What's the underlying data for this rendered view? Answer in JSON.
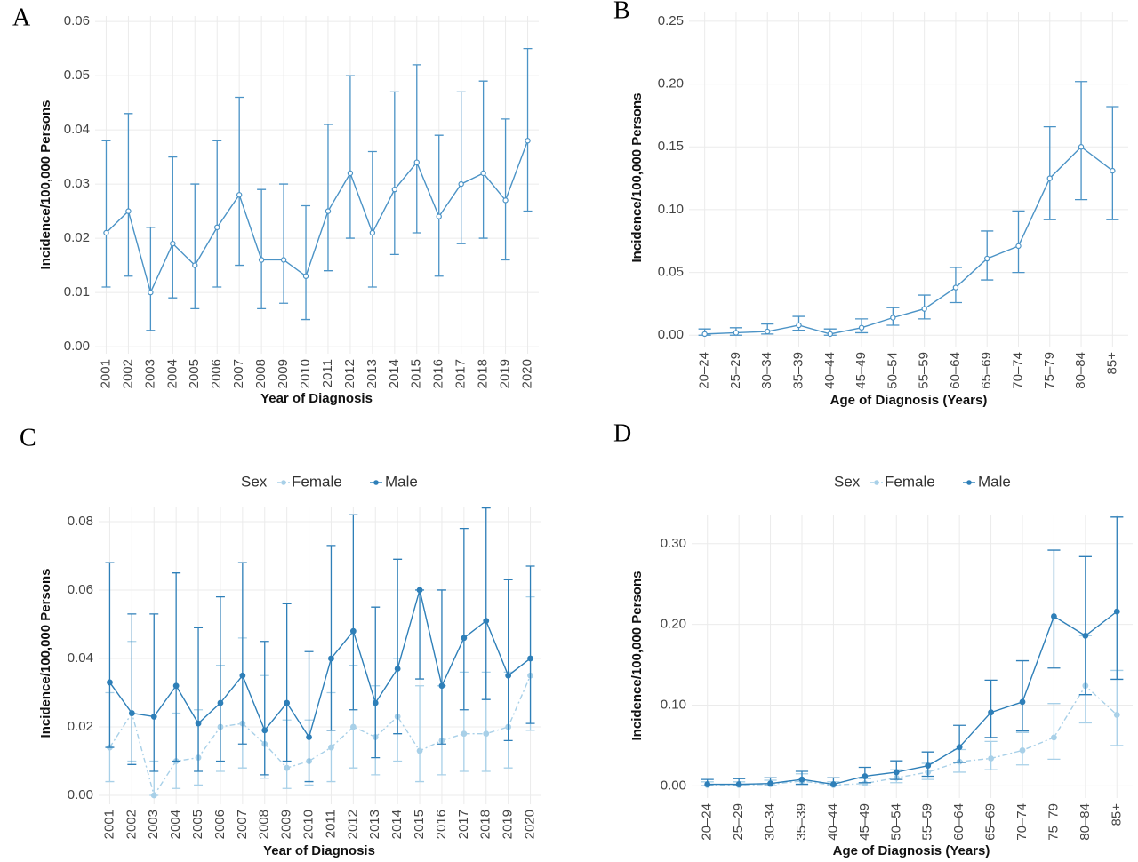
{
  "chart_data": [
    {
      "type": "line",
      "label": "A",
      "ylabel": "Incidence/100,000 Persons",
      "xlabel": "Year of Diagnosis",
      "categories": [
        "2001",
        "2002",
        "2003",
        "2004",
        "2005",
        "2006",
        "2007",
        "2008",
        "2009",
        "2010",
        "2011",
        "2012",
        "2013",
        "2014",
        "2015",
        "2016",
        "2017",
        "2018",
        "2019",
        "2020"
      ],
      "ylim": [
        -0.0013,
        0.061
      ],
      "yticks": [
        {
          "value": 0,
          "label": "0.00"
        },
        0.01,
        0.02,
        0.03,
        0.04,
        0.05,
        0.06
      ],
      "grid": true,
      "series": [
        {
          "color": "#4b93c6",
          "hollow": true,
          "values": [
            0.021,
            0.025,
            0.01,
            0.019,
            0.015,
            0.022,
            0.028,
            0.016,
            0.016,
            0.013,
            0.025,
            0.032,
            0.021,
            0.029,
            0.034,
            0.024,
            0.03,
            0.032,
            0.027,
            0.038
          ],
          "lower": [
            0.011,
            0.013,
            0.003,
            0.009,
            0.007,
            0.011,
            0.015,
            0.007,
            0.008,
            0.005,
            0.014,
            0.02,
            0.011,
            0.017,
            0.021,
            0.013,
            0.019,
            0.02,
            0.016,
            0.025
          ],
          "upper": [
            0.038,
            0.043,
            0.022,
            0.035,
            0.03,
            0.038,
            0.046,
            0.029,
            0.03,
            0.026,
            0.041,
            0.05,
            0.036,
            0.047,
            0.052,
            0.039,
            0.047,
            0.049,
            0.042,
            0.055
          ]
        }
      ]
    },
    {
      "type": "line",
      "label": "B",
      "ylabel": "Incidence/100,000 Persons",
      "xlabel": "Age of Diagnosis (Years)",
      "categories": [
        "20–24",
        "25–29",
        "30–34",
        "35–39",
        "40–44",
        "45–49",
        "50–54",
        "55–59",
        "60–64",
        "65–69",
        "70–74",
        "75–79",
        "80–84",
        "85+"
      ],
      "ylim": [
        -0.009,
        0.257
      ],
      "yticks": [
        {
          "value": 0,
          "label": "0.00"
        },
        0.05,
        {
          "value": 0.1,
          "label": "0.10"
        },
        0.15,
        {
          "value": 0.2,
          "label": "0.20"
        },
        0.25
      ],
      "grid": true,
      "series": [
        {
          "color": "#4b93c6",
          "hollow": true,
          "values": [
            0.001,
            0.002,
            0.003,
            0.008,
            0.001,
            0.006,
            0.014,
            0.021,
            0.038,
            0.061,
            0.071,
            0.125,
            0.15,
            0.131
          ],
          "lower": [
            0.0,
            0.0,
            0.001,
            0.004,
            0.0,
            0.002,
            0.008,
            0.013,
            0.026,
            0.044,
            0.05,
            0.092,
            0.108,
            0.092
          ],
          "upper": [
            0.005,
            0.006,
            0.009,
            0.015,
            0.005,
            0.013,
            0.022,
            0.032,
            0.054,
            0.083,
            0.099,
            0.166,
            0.202,
            0.182
          ]
        }
      ]
    },
    {
      "type": "line",
      "label": "C",
      "ylabel": "Incidence/100,000 Persons",
      "xlabel": "Year of Diagnosis",
      "legend_title": "Sex",
      "categories": [
        "2001",
        "2002",
        "2003",
        "2004",
        "2005",
        "2006",
        "2007",
        "2008",
        "2009",
        "2010",
        "2011",
        "2012",
        "2013",
        "2014",
        "2015",
        "2016",
        "2017",
        "2018",
        "2019",
        "2020"
      ],
      "ylim": [
        -0.0026,
        0.0844
      ],
      "yticks": [
        {
          "value": 0,
          "label": "0.00"
        },
        0.02,
        0.04,
        0.06,
        0.08
      ],
      "grid": true,
      "series": [
        {
          "name": "Female",
          "color": "#a8d0e8",
          "dashed": true,
          "values": [
            0.014,
            0.024,
            0.0,
            0.01,
            0.011,
            0.02,
            0.021,
            0.015,
            0.008,
            0.01,
            0.014,
            0.02,
            0.017,
            0.023,
            0.013,
            0.016,
            0.018,
            0.018,
            0.02,
            0.035
          ],
          "lower": [
            0.004,
            0.01,
            0.0,
            0.002,
            0.003,
            0.007,
            0.008,
            0.005,
            0.002,
            0.003,
            0.004,
            0.008,
            0.006,
            0.01,
            0.004,
            0.006,
            0.007,
            0.007,
            0.008,
            0.019
          ],
          "upper": [
            0.03,
            0.045,
            0.01,
            0.024,
            0.025,
            0.038,
            0.046,
            0.035,
            0.022,
            0.022,
            0.03,
            0.038,
            0.032,
            0.04,
            0.032,
            0.032,
            0.036,
            0.036,
            0.036,
            0.058
          ]
        },
        {
          "name": "Male",
          "color": "#2e7fb8",
          "values": [
            0.033,
            0.024,
            0.023,
            0.032,
            0.021,
            0.027,
            0.035,
            0.019,
            0.027,
            0.017,
            0.04,
            0.048,
            0.027,
            0.037,
            0.06,
            0.032,
            0.046,
            0.051,
            0.035,
            0.04
          ],
          "lower": [
            0.014,
            0.009,
            0.007,
            0.01,
            0.007,
            0.01,
            0.015,
            0.006,
            0.01,
            0.004,
            0.019,
            0.025,
            0.011,
            0.018,
            0.034,
            0.015,
            0.025,
            0.028,
            0.016,
            0.021
          ],
          "upper": [
            0.068,
            0.053,
            0.053,
            0.065,
            0.049,
            0.058,
            0.068,
            0.045,
            0.056,
            0.042,
            0.073,
            0.082,
            0.055,
            0.069,
            0.06,
            0.06,
            0.078,
            0.084,
            0.063,
            0.067
          ]
        }
      ]
    },
    {
      "type": "line",
      "label": "D",
      "ylabel": "Incidence/100,000 Persons",
      "xlabel": "Age of Diagnosis (Years)",
      "legend_title": "Sex",
      "categories": [
        "20–24",
        "25–29",
        "30–34",
        "35–39",
        "40–44",
        "45–49",
        "50–54",
        "55–59",
        "60–64",
        "65–69",
        "70–74",
        "75–79",
        "80–84",
        "85+"
      ],
      "ylim": [
        -0.015,
        0.335
      ],
      "yticks": [
        {
          "value": 0,
          "label": "0.00"
        },
        {
          "value": 0.1,
          "label": "0.10"
        },
        {
          "value": 0.2,
          "label": "0.20"
        },
        {
          "value": 0.3,
          "label": "0.30"
        }
      ],
      "grid": true,
      "series": [
        {
          "name": "Female",
          "color": "#a8d0e8",
          "dashed": true,
          "values": [
            0.001,
            0.001,
            0.002,
            0.006,
            0.001,
            0.003,
            0.01,
            0.017,
            0.03,
            0.034,
            0.044,
            0.06,
            0.124,
            0.088
          ],
          "lower": [
            0.0,
            0.0,
            0.0,
            0.002,
            0.0,
            0.0,
            0.004,
            0.008,
            0.017,
            0.02,
            0.026,
            0.033,
            0.078,
            0.05
          ],
          "upper": [
            0.005,
            0.005,
            0.007,
            0.015,
            0.005,
            0.009,
            0.02,
            0.028,
            0.045,
            0.055,
            0.066,
            0.102,
            0.186,
            0.143
          ]
        },
        {
          "name": "Male",
          "color": "#2e7fb8",
          "values": [
            0.002,
            0.002,
            0.003,
            0.008,
            0.002,
            0.012,
            0.017,
            0.025,
            0.048,
            0.091,
            0.104,
            0.21,
            0.186,
            0.216
          ],
          "lower": [
            0.0,
            0.0,
            0.0,
            0.002,
            0.0,
            0.004,
            0.008,
            0.012,
            0.029,
            0.06,
            0.068,
            0.146,
            0.113,
            0.132
          ],
          "upper": [
            0.008,
            0.009,
            0.01,
            0.018,
            0.01,
            0.023,
            0.031,
            0.042,
            0.075,
            0.131,
            0.155,
            0.292,
            0.284,
            0.333
          ]
        }
      ]
    }
  ]
}
